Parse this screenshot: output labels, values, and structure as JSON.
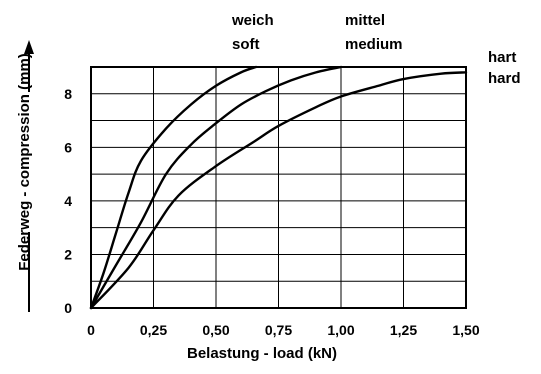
{
  "chart_data": {
    "type": "line",
    "xlabel": "Belastung - load (kN)",
    "ylabel": "Federweg - compression (mm)",
    "xlim": [
      0,
      1.5
    ],
    "ylim": [
      0,
      9
    ],
    "x_ticks": [
      "0",
      "0,25",
      "0,50",
      "0,75",
      "1,00",
      "1,25",
      "1,50"
    ],
    "y_ticks": [
      "0",
      "2",
      "4",
      "6",
      "8"
    ],
    "grid": true,
    "series": [
      {
        "name": "weich soft",
        "label_lines": [
          "weich",
          "soft"
        ],
        "points": [
          [
            0,
            0
          ],
          [
            0.05,
            1.3
          ],
          [
            0.1,
            2.8
          ],
          [
            0.15,
            4.3
          ],
          [
            0.2,
            5.5
          ],
          [
            0.3,
            6.7
          ],
          [
            0.4,
            7.6
          ],
          [
            0.5,
            8.3
          ],
          [
            0.6,
            8.8
          ],
          [
            0.66,
            9.0
          ]
        ]
      },
      {
        "name": "mittel medium",
        "label_lines": [
          "mittel",
          "medium"
        ],
        "points": [
          [
            0,
            0
          ],
          [
            0.1,
            1.6
          ],
          [
            0.2,
            3.2
          ],
          [
            0.3,
            5.0
          ],
          [
            0.4,
            6.1
          ],
          [
            0.5,
            6.9
          ],
          [
            0.6,
            7.6
          ],
          [
            0.7,
            8.1
          ],
          [
            0.8,
            8.5
          ],
          [
            0.9,
            8.8
          ],
          [
            1.0,
            9.0
          ]
        ]
      },
      {
        "name": "hart hard",
        "label_lines": [
          "hart",
          "hard"
        ],
        "points": [
          [
            0,
            0
          ],
          [
            0.15,
            1.5
          ],
          [
            0.25,
            2.9
          ],
          [
            0.35,
            4.2
          ],
          [
            0.5,
            5.3
          ],
          [
            0.65,
            6.2
          ],
          [
            0.75,
            6.8
          ],
          [
            0.9,
            7.5
          ],
          [
            1.0,
            7.9
          ],
          [
            1.15,
            8.3
          ],
          [
            1.25,
            8.55
          ],
          [
            1.4,
            8.75
          ],
          [
            1.5,
            8.8
          ]
        ]
      }
    ]
  }
}
